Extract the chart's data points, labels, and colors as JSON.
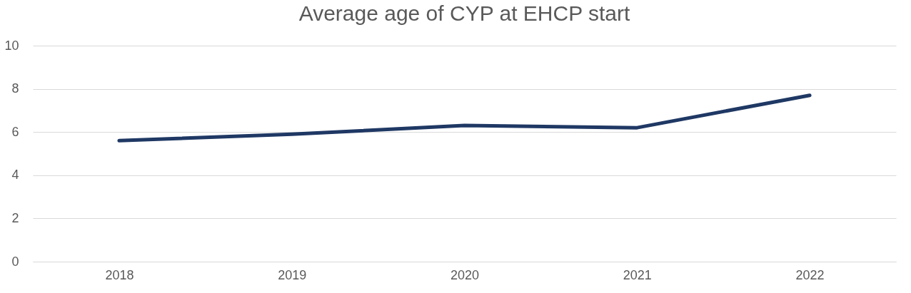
{
  "chart_data": {
    "type": "line",
    "title": "Average age of CYP at EHCP start",
    "categories": [
      "2018",
      "2019",
      "2020",
      "2021",
      "2022"
    ],
    "series": [
      {
        "color": "#1f3864",
        "values": [
          5.6,
          5.9,
          6.3,
          6.2,
          7.7
        ]
      }
    ],
    "ylim": [
      0,
      10
    ],
    "yticks": [
      0,
      2,
      4,
      6,
      8,
      10
    ],
    "grid": "y",
    "marker": "none",
    "line_style": "solid"
  }
}
